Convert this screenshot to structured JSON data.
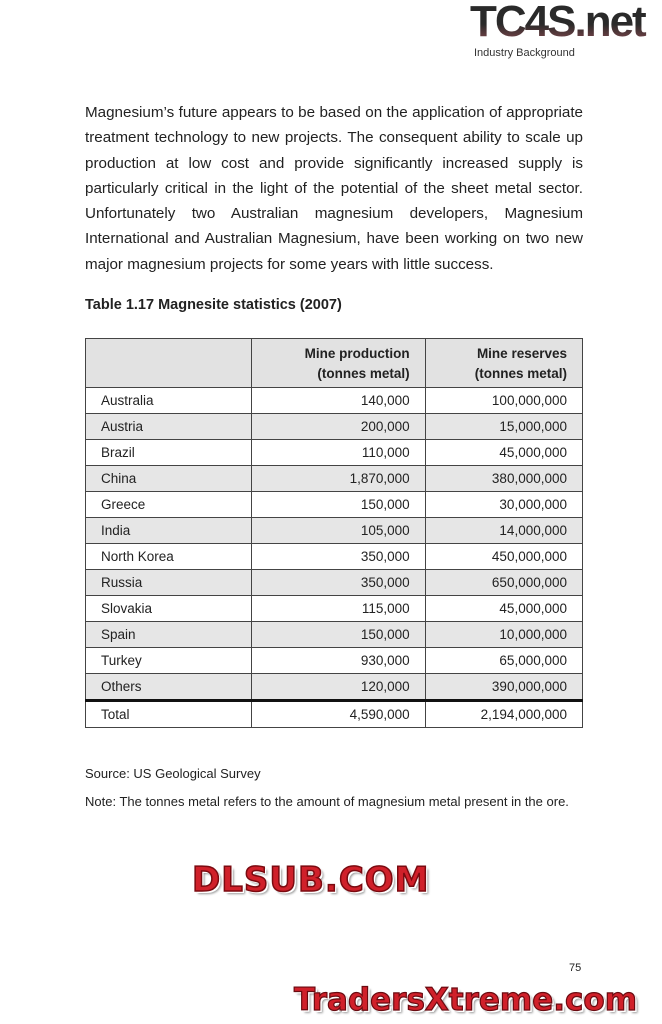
{
  "header": {
    "logo": "TC4S.net",
    "running_head": "Industry Background"
  },
  "body_paragraph": "Magnesium’s future appears to be based on the application of appropriate treatment technology to new projects. The consequent ability to scale up production at low cost and provide significantly increased supply is particularly critical in the light of the potential of the sheet metal sector. Unfortunately two Australian magnesium developers, Magnesium International and Australian Magnesium, have been working on two new major magnesium projects for some years with little success.",
  "table": {
    "caption": "Table 1.17 Magnesite statistics (2007)",
    "headers": [
      "",
      "Mine production (tonnes metal)",
      "Mine reserves (tonnes metal)"
    ],
    "header_lines": [
      [
        "Mine production",
        "(tonnes metal)"
      ],
      [
        "Mine reserves",
        "(tonnes metal)"
      ]
    ],
    "rows": [
      [
        "Australia",
        "140,000",
        "100,000,000"
      ],
      [
        "Austria",
        "200,000",
        "15,000,000"
      ],
      [
        "Brazil",
        "110,000",
        "45,000,000"
      ],
      [
        "China",
        "1,870,000",
        "380,000,000"
      ],
      [
        "Greece",
        "150,000",
        "30,000,000"
      ],
      [
        "India",
        "105,000",
        "14,000,000"
      ],
      [
        "North Korea",
        "350,000",
        "450,000,000"
      ],
      [
        "Russia",
        "350,000",
        "650,000,000"
      ],
      [
        "Slovakia",
        "115,000",
        "45,000,000"
      ],
      [
        "Spain",
        "150,000",
        "10,000,000"
      ],
      [
        "Turkey",
        "930,000",
        "65,000,000"
      ],
      [
        "Others",
        "120,000",
        "390,000,000"
      ]
    ],
    "total": [
      "Total",
      "4,590,000",
      "2,194,000,000"
    ]
  },
  "source": "Source: US Geological Survey",
  "note": "Note: The tonnes metal refers to the amount of magnesium metal present in the ore.",
  "page_number": "75",
  "watermarks": {
    "center": "DLSUB.COM",
    "bottom": "TradersXtreme.com"
  },
  "colors": {
    "watermark_red": "#d0202a",
    "row_shade": "#e6e6e6"
  }
}
